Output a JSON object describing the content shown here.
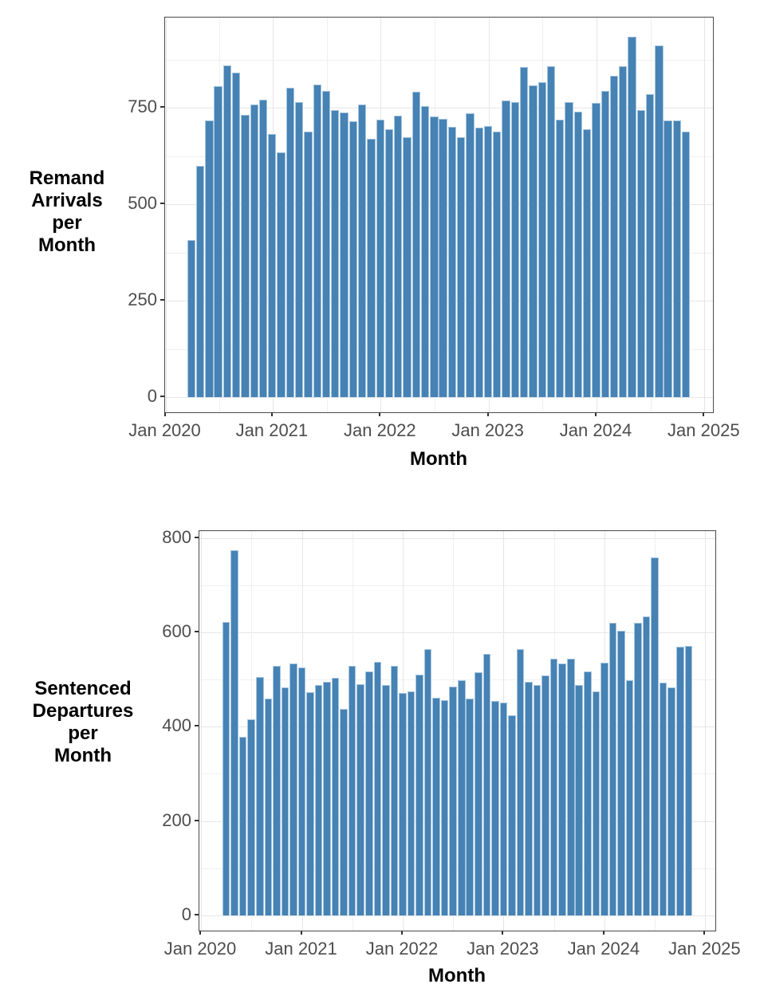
{
  "chart_data": [
    {
      "type": "bar",
      "title": "",
      "ylabel": "Remand Arrivals per Month",
      "ylabel_lines": [
        "Remand",
        "Arrivals",
        "per",
        "Month"
      ],
      "xlabel": "Month",
      "x_start": "Apr 2020",
      "x_end": "Nov 2024",
      "x_tick_labels": [
        "Jan 2020",
        "Jan 2021",
        "Jan 2022",
        "Jan 2023",
        "Jan 2024",
        "Jan 2025"
      ],
      "y_tick_labels": [
        "750",
        "500",
        "250",
        "0"
      ],
      "y_ticks": [
        750,
        500,
        250,
        0
      ],
      "ylim": [
        0,
        985
      ],
      "grid": true,
      "legend": "none",
      "bar_color": "#4682b4",
      "categories": [
        "Apr 2020",
        "May 2020",
        "Jun 2020",
        "Jul 2020",
        "Aug 2020",
        "Sep 2020",
        "Oct 2020",
        "Nov 2020",
        "Dec 2020",
        "Jan 2021",
        "Feb 2021",
        "Mar 2021",
        "Apr 2021",
        "May 2021",
        "Jun 2021",
        "Jul 2021",
        "Aug 2021",
        "Sep 2021",
        "Oct 2021",
        "Nov 2021",
        "Dec 2021",
        "Jan 2022",
        "Feb 2022",
        "Mar 2022",
        "Apr 2022",
        "May 2022",
        "Jun 2022",
        "Jul 2022",
        "Aug 2022",
        "Sep 2022",
        "Oct 2022",
        "Nov 2022",
        "Dec 2022",
        "Jan 2023",
        "Feb 2023",
        "Mar 2023",
        "Apr 2023",
        "May 2023",
        "Jun 2023",
        "Jul 2023",
        "Aug 2023",
        "Sep 2023",
        "Oct 2023",
        "Nov 2023",
        "Dec 2023",
        "Jan 2024",
        "Feb 2024",
        "Mar 2024",
        "Apr 2024",
        "May 2024",
        "Jun 2024",
        "Jul 2024",
        "Aug 2024",
        "Sep 2024",
        "Oct 2024",
        "Nov 2024"
      ],
      "values": [
        407,
        600,
        717,
        806,
        861,
        843,
        732,
        759,
        771,
        683,
        635,
        803,
        765,
        688,
        810,
        794,
        744,
        739,
        715,
        760,
        671,
        721,
        696,
        730,
        674,
        792,
        755,
        728,
        722,
        702,
        674,
        736,
        700,
        703,
        689,
        770,
        765,
        857,
        808,
        818,
        859,
        721,
        765,
        741,
        695,
        763,
        794,
        833,
        859,
        935,
        744,
        787,
        912,
        717,
        717,
        689
      ]
    },
    {
      "type": "bar",
      "title": "",
      "ylabel": "Sentenced Departures per Month",
      "ylabel_lines": [
        "Sentenced",
        "Departures",
        "per",
        "Month"
      ],
      "xlabel": "Month",
      "x_start": "Apr 2020",
      "x_end": "Nov 2024",
      "x_tick_labels": [
        "Jan 2020",
        "Jan 2021",
        "Jan 2022",
        "Jan 2023",
        "Jan 2024",
        "Jan 2025"
      ],
      "y_tick_labels": [
        "800",
        "600",
        "400",
        "200",
        "0"
      ],
      "y_ticks": [
        800,
        600,
        400,
        200,
        0
      ],
      "ylim": [
        0,
        814
      ],
      "grid": true,
      "legend": "none",
      "bar_color": "#4682b4",
      "categories": [
        "Apr 2020",
        "May 2020",
        "Jun 2020",
        "Jul 2020",
        "Aug 2020",
        "Sep 2020",
        "Oct 2020",
        "Nov 2020",
        "Dec 2020",
        "Jan 2021",
        "Feb 2021",
        "Mar 2021",
        "Apr 2021",
        "May 2021",
        "Jun 2021",
        "Jul 2021",
        "Aug 2021",
        "Sep 2021",
        "Oct 2021",
        "Nov 2021",
        "Dec 2021",
        "Jan 2022",
        "Feb 2022",
        "Mar 2022",
        "Apr 2022",
        "May 2022",
        "Jun 2022",
        "Jul 2022",
        "Aug 2022",
        "Sep 2022",
        "Oct 2022",
        "Nov 2022",
        "Dec 2022",
        "Jan 2023",
        "Feb 2023",
        "Mar 2023",
        "Apr 2023",
        "May 2023",
        "Jun 2023",
        "Jul 2023",
        "Aug 2023",
        "Sep 2023",
        "Oct 2023",
        "Nov 2023",
        "Dec 2023",
        "Jan 2024",
        "Feb 2024",
        "Mar 2024",
        "Apr 2024",
        "May 2024",
        "Jun 2024",
        "Jul 2024",
        "Aug 2024",
        "Sep 2024",
        "Oct 2024",
        "Nov 2024"
      ],
      "values": [
        622,
        774,
        378,
        415,
        505,
        459,
        529,
        483,
        535,
        526,
        473,
        489,
        495,
        503,
        437,
        529,
        491,
        517,
        537,
        489,
        529,
        472,
        475,
        511,
        564,
        462,
        457,
        485,
        498,
        460,
        515,
        555,
        455,
        452,
        425,
        564,
        495,
        489,
        508,
        545,
        534,
        545,
        488,
        518,
        475,
        536,
        620,
        604,
        499,
        621,
        634,
        760,
        493,
        483,
        570,
        572
      ]
    }
  ],
  "styles": {
    "bar_fill": "#4682b4",
    "bar_edge": "#a6c6df",
    "grid_major": "#e6e6e6",
    "grid_minor": "#f0f0f0",
    "panel_border": "#4a4a4a",
    "tick_text_color": "#4d4d4d",
    "title_text_color": "#000000",
    "background": "#ffffff"
  }
}
